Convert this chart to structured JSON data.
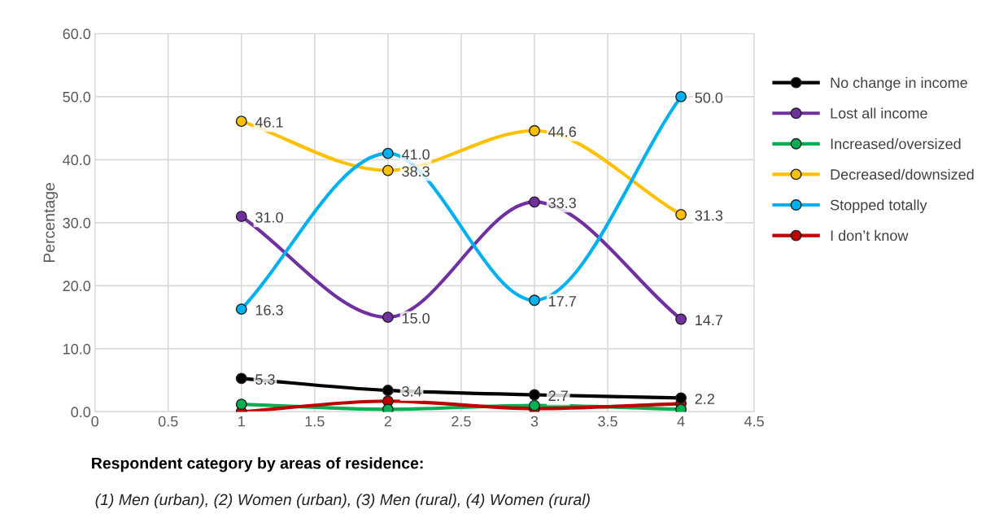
{
  "chart_data": {
    "type": "line",
    "ylabel": "Percentage",
    "xlabel": "Respondent category by areas of residence:",
    "annotations": [
      "(1) Men (urban), (2) Women (urban), (3) Men (rural), (4) Women (rural)"
    ],
    "x": [
      1,
      2,
      3,
      4
    ],
    "series": [
      {
        "name": "No change in income",
        "color": "#000000",
        "values": [
          5.3,
          3.4,
          2.7,
          2.2
        ],
        "value_labels": [
          "5.3",
          "3.4",
          "2.7",
          "2.2"
        ]
      },
      {
        "name": "Lost all income",
        "color": "#7030a0",
        "values": [
          31.0,
          15.0,
          33.3,
          14.7
        ],
        "value_labels": [
          "31.0",
          "15.0",
          "33.3",
          "14.7"
        ]
      },
      {
        "name": "Increased/oversized",
        "color": "#00b050",
        "values": [
          1.2,
          0.4,
          1.0,
          0.4
        ]
      },
      {
        "name": "Decreased/downsized",
        "color": "#ffc000",
        "values": [
          46.1,
          38.3,
          44.6,
          31.3
        ],
        "value_labels": [
          "46.1",
          "38.3",
          "44.6",
          "31.3"
        ]
      },
      {
        "name": "Stopped totally",
        "color": "#00b0f0",
        "values": [
          16.3,
          41.0,
          17.7,
          50.0
        ],
        "value_labels": [
          "16.3",
          "41.0",
          "17.7",
          "50.0"
        ]
      },
      {
        "name": "I don’t know",
        "color": "#c00000",
        "values": [
          0.0,
          1.7,
          0.5,
          1.3
        ]
      }
    ],
    "xlim": [
      0,
      4.5
    ],
    "xticks": [
      {
        "value": 0,
        "label": "0"
      },
      {
        "value": 0.5,
        "label": "0.5"
      },
      {
        "value": 1,
        "label": "1"
      },
      {
        "value": 1.5,
        "label": "1.5"
      },
      {
        "value": 2,
        "label": "2"
      },
      {
        "value": 2.5,
        "label": "2.5"
      },
      {
        "value": 3,
        "label": "3"
      },
      {
        "value": 3.5,
        "label": "3.5"
      },
      {
        "value": 4,
        "label": "4"
      },
      {
        "value": 4.5,
        "label": "4.5"
      }
    ],
    "ylim": [
      0,
      60
    ],
    "yticks": [
      {
        "value": 0,
        "label": "0.0"
      },
      {
        "value": 10,
        "label": "10.0"
      },
      {
        "value": 20,
        "label": "20.0"
      },
      {
        "value": 30,
        "label": "30.0"
      },
      {
        "value": 40,
        "label": "40.0"
      },
      {
        "value": 50,
        "label": "50.0"
      },
      {
        "value": 60,
        "label": "60.0"
      }
    ],
    "grid": true,
    "legend": "right",
    "marker": "circle",
    "line_style": "solid"
  }
}
